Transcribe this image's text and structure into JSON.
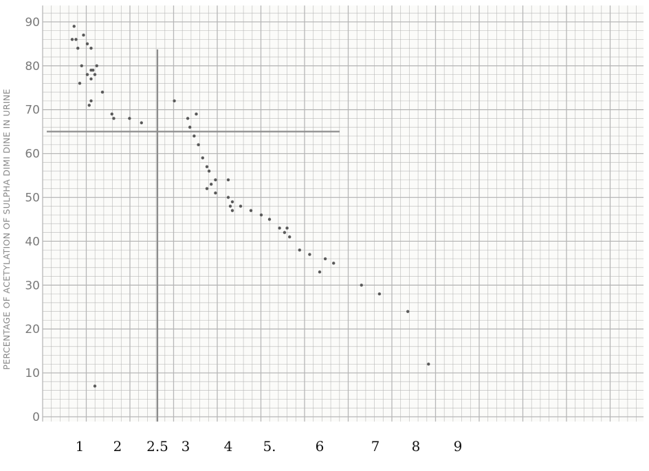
{
  "chart_data": {
    "type": "scatter",
    "title": "",
    "xlabel": "",
    "ylabel": "PERCENTAGE OF ACETYLATION OF SULPHA DIMI DINE IN URINE",
    "xlim": [
      0.5,
      10
    ],
    "ylim": [
      0,
      95
    ],
    "y_ticks": [
      0,
      10,
      20,
      30,
      40,
      50,
      60,
      70,
      80,
      90
    ],
    "x_ticks": [
      {
        "label": "1",
        "value": 1
      },
      {
        "label": "2",
        "value": 2
      },
      {
        "label": "2.5",
        "value": 2.5
      },
      {
        "label": "3",
        "value": 3
      },
      {
        "label": "4",
        "value": 4
      },
      {
        "label": "5.",
        "value": 5
      },
      {
        "label": "6",
        "value": 6
      },
      {
        "label": "7",
        "value": 7
      },
      {
        "label": "8",
        "value": 8
      },
      {
        "label": "9",
        "value": 9
      }
    ],
    "grid": true,
    "reference_lines": {
      "vertical_x": 2.5,
      "horizontal_y": 65
    },
    "colors": {
      "grid": "#b4b4b4",
      "points": "#5a5a5a",
      "reference_lines": "#8c8c8c"
    },
    "series": [
      {
        "points": [
          {
            "x": 0.85,
            "y": 89
          },
          {
            "x": 0.8,
            "y": 86
          },
          {
            "x": 0.9,
            "y": 86
          },
          {
            "x": 0.95,
            "y": 84
          },
          {
            "x": 1.1,
            "y": 87
          },
          {
            "x": 1.2,
            "y": 85
          },
          {
            "x": 1.3,
            "y": 84
          },
          {
            "x": 1.05,
            "y": 80
          },
          {
            "x": 1.2,
            "y": 78
          },
          {
            "x": 1.3,
            "y": 79
          },
          {
            "x": 1.35,
            "y": 79
          },
          {
            "x": 1.45,
            "y": 80
          },
          {
            "x": 1.4,
            "y": 78
          },
          {
            "x": 1.0,
            "y": 76
          },
          {
            "x": 1.3,
            "y": 77
          },
          {
            "x": 1.3,
            "y": 72
          },
          {
            "x": 1.25,
            "y": 71
          },
          {
            "x": 1.6,
            "y": 74
          },
          {
            "x": 1.85,
            "y": 69
          },
          {
            "x": 1.9,
            "y": 68
          },
          {
            "x": 2.15,
            "y": 68
          },
          {
            "x": 2.3,
            "y": 67
          },
          {
            "x": 2.8,
            "y": 72
          },
          {
            "x": 3.05,
            "y": 68
          },
          {
            "x": 3.1,
            "y": 66
          },
          {
            "x": 3.25,
            "y": 69
          },
          {
            "x": 3.2,
            "y": 64
          },
          {
            "x": 3.3,
            "y": 62
          },
          {
            "x": 3.4,
            "y": 59
          },
          {
            "x": 3.5,
            "y": 57
          },
          {
            "x": 3.55,
            "y": 56
          },
          {
            "x": 3.6,
            "y": 53
          },
          {
            "x": 3.7,
            "y": 54
          },
          {
            "x": 3.5,
            "y": 52
          },
          {
            "x": 3.7,
            "y": 51
          },
          {
            "x": 4.0,
            "y": 54
          },
          {
            "x": 4.0,
            "y": 50
          },
          {
            "x": 4.1,
            "y": 49
          },
          {
            "x": 4.05,
            "y": 48
          },
          {
            "x": 4.1,
            "y": 47
          },
          {
            "x": 4.3,
            "y": 48
          },
          {
            "x": 4.55,
            "y": 47
          },
          {
            "x": 4.8,
            "y": 46
          },
          {
            "x": 5.0,
            "y": 45
          },
          {
            "x": 5.2,
            "y": 43
          },
          {
            "x": 5.3,
            "y": 42
          },
          {
            "x": 5.35,
            "y": 43
          },
          {
            "x": 5.4,
            "y": 41
          },
          {
            "x": 5.6,
            "y": 38
          },
          {
            "x": 5.8,
            "y": 37
          },
          {
            "x": 6.0,
            "y": 33
          },
          {
            "x": 6.1,
            "y": 36
          },
          {
            "x": 6.25,
            "y": 35
          },
          {
            "x": 6.75,
            "y": 30
          },
          {
            "x": 7.1,
            "y": 28
          },
          {
            "x": 7.8,
            "y": 24
          },
          {
            "x": 8.3,
            "y": 12
          },
          {
            "x": 1.4,
            "y": 7
          }
        ]
      }
    ]
  }
}
